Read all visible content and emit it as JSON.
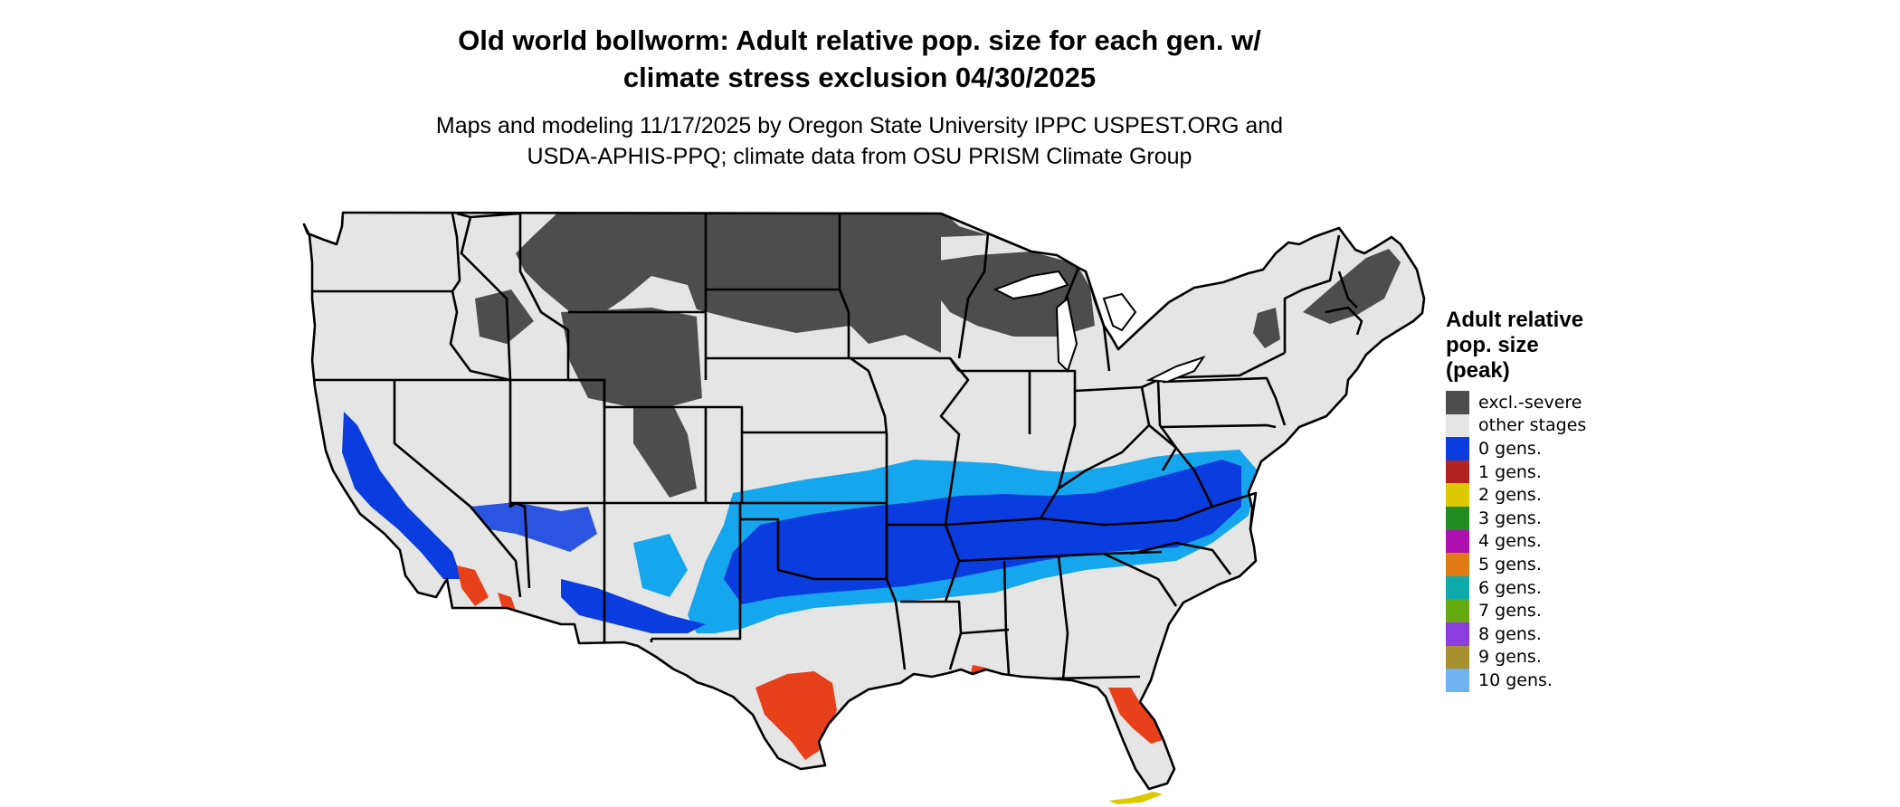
{
  "title": {
    "line1": "Old world bollworm: Adult relative pop. size for each gen. w/",
    "line2": "climate stress exclusion 04/30/2025"
  },
  "subtitle": {
    "line1": "Maps and modeling 11/17/2025 by Oregon State University IPPC USPEST.ORG and",
    "line2": "USDA-APHIS-PPQ; climate data from OSU PRISM Climate Group"
  },
  "legend": {
    "title_line1": "Adult relative",
    "title_line2": "pop. size",
    "title_line3": "(peak)",
    "items": [
      {
        "label": "excl.-severe",
        "color": "#4d4d4d"
      },
      {
        "label": "other stages",
        "color": "#e5e5e5"
      },
      {
        "label": "0 gens.",
        "color": "#0a3ce0"
      },
      {
        "label": "1 gens.",
        "color": "#b22222"
      },
      {
        "label": "2 gens.",
        "color": "#dcc900"
      },
      {
        "label": "3 gens.",
        "color": "#228b22"
      },
      {
        "label": "4 gens.",
        "color": "#b010b0"
      },
      {
        "label": "5 gens.",
        "color": "#e07a12"
      },
      {
        "label": "6 gens.",
        "color": "#10aaaa"
      },
      {
        "label": "7 gens.",
        "color": "#66aa10"
      },
      {
        "label": "8 gens.",
        "color": "#8a3ee0"
      },
      {
        "label": "9 gens.",
        "color": "#a89030"
      },
      {
        "label": "10 gens.",
        "color": "#6eb2f0"
      }
    ]
  },
  "map_colors": {
    "land": "#e5e5e5",
    "excluded": "#4d4d4d",
    "zero_gens_dark": "#0a3ce0",
    "zero_gens_light": "#16a6ee",
    "one_gens_red": "#e8401a",
    "two_gens_yellow": "#dcc900",
    "border": "#000000"
  }
}
